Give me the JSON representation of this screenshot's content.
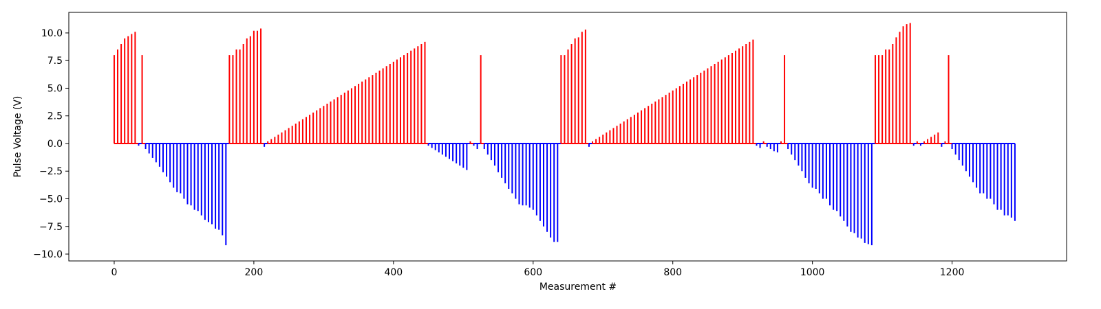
{
  "chart_data": {
    "type": "stem",
    "x_label": "Measurement #",
    "y_label": "Pulse Voltage (V)",
    "positive_color": "#ff0000",
    "negative_color": "#0000ff",
    "xlim": [
      -65,
      1364
    ],
    "ylim": [
      -10.62,
      11.86
    ],
    "xticks": [
      0,
      200,
      400,
      600,
      800,
      1000,
      1200
    ],
    "yticks": [
      {
        "value": -10,
        "label": "−10.0"
      },
      {
        "value": -7.5,
        "label": "−7.5"
      },
      {
        "value": -5,
        "label": "−5.0"
      },
      {
        "value": -2.5,
        "label": "−2.5"
      },
      {
        "value": 0,
        "label": "0.0"
      },
      {
        "value": 2.5,
        "label": "2.5"
      },
      {
        "value": 5,
        "label": "5.0"
      },
      {
        "value": 7.5,
        "label": "7.5"
      },
      {
        "value": 10,
        "label": "10.0"
      }
    ],
    "x": [
      0,
      5,
      10,
      15,
      20,
      25,
      30,
      35,
      40,
      45,
      50,
      55,
      60,
      65,
      70,
      75,
      80,
      85,
      90,
      95,
      100,
      105,
      110,
      115,
      120,
      125,
      130,
      135,
      140,
      145,
      150,
      155,
      160,
      165,
      170,
      175,
      180,
      185,
      190,
      195,
      200,
      205,
      210,
      215,
      220,
      225,
      230,
      235,
      240,
      245,
      250,
      255,
      260,
      265,
      270,
      275,
      280,
      285,
      290,
      295,
      300,
      305,
      310,
      315,
      320,
      325,
      330,
      335,
      340,
      345,
      350,
      355,
      360,
      365,
      370,
      375,
      380,
      385,
      390,
      395,
      400,
      405,
      410,
      415,
      420,
      425,
      430,
      435,
      440,
      445,
      450,
      455,
      460,
      465,
      470,
      475,
      480,
      485,
      490,
      495,
      500,
      505,
      510,
      515,
      520,
      525,
      530,
      535,
      540,
      545,
      550,
      555,
      560,
      565,
      570,
      575,
      580,
      585,
      590,
      595,
      600,
      605,
      610,
      615,
      620,
      625,
      630,
      635,
      640,
      645,
      650,
      655,
      660,
      665,
      670,
      675,
      680,
      685,
      690,
      695,
      700,
      705,
      710,
      715,
      720,
      725,
      730,
      735,
      740,
      745,
      750,
      755,
      760,
      765,
      770,
      775,
      780,
      785,
      790,
      795,
      800,
      805,
      810,
      815,
      820,
      825,
      830,
      835,
      840,
      845,
      850,
      855,
      860,
      865,
      870,
      875,
      880,
      885,
      890,
      895,
      900,
      905,
      910,
      915,
      920,
      925,
      930,
      935,
      940,
      945,
      950,
      955,
      960,
      965,
      970,
      975,
      980,
      985,
      990,
      995,
      1000,
      1005,
      1010,
      1015,
      1020,
      1025,
      1030,
      1035,
      1040,
      1045,
      1050,
      1055,
      1060,
      1065,
      1070,
      1075,
      1080,
      1085,
      1090,
      1095,
      1100,
      1105,
      1110,
      1115,
      1120,
      1125,
      1130,
      1135,
      1140,
      1145,
      1150,
      1155,
      1160,
      1165,
      1170,
      1175,
      1180,
      1185,
      1190,
      1195,
      1200,
      1205,
      1210,
      1215,
      1220,
      1225,
      1230,
      1235,
      1240,
      1245,
      1250,
      1255,
      1260,
      1265,
      1270,
      1275,
      1280,
      1285,
      1290
    ],
    "values": [
      8.0,
      8.5,
      9.0,
      9.5,
      9.7,
      9.9,
      10.1,
      -0.2,
      8.0,
      -0.5,
      -0.9,
      -1.3,
      -1.7,
      -2.1,
      -2.6,
      -3.0,
      -3.5,
      -4.0,
      -4.4,
      -4.5,
      -5.0,
      -5.5,
      -5.6,
      -6.0,
      -6.1,
      -6.5,
      -6.9,
      -7.1,
      -7.3,
      -7.7,
      -7.8,
      -8.3,
      -9.2,
      8.0,
      8.0,
      8.5,
      8.5,
      9.0,
      9.5,
      9.7,
      10.2,
      10.2,
      10.4,
      -0.3,
      0.2,
      0.4,
      0.6,
      0.8,
      1.0,
      1.2,
      1.4,
      1.6,
      1.8,
      2.0,
      2.2,
      2.4,
      2.6,
      2.8,
      3.0,
      3.2,
      3.4,
      3.6,
      3.8,
      4.0,
      4.2,
      4.4,
      4.6,
      4.8,
      5.0,
      5.2,
      5.4,
      5.6,
      5.8,
      6.0,
      6.2,
      6.4,
      6.6,
      6.8,
      7.0,
      7.2,
      7.4,
      7.6,
      7.8,
      8.0,
      8.2,
      8.4,
      8.6,
      8.8,
      9.0,
      9.2,
      -0.2,
      -0.4,
      -0.6,
      -0.8,
      -1.0,
      -1.2,
      -1.4,
      -1.6,
      -1.8,
      -2.0,
      -2.2,
      -2.4,
      0.2,
      -0.2,
      -0.5,
      8.0,
      -0.5,
      -1.0,
      -1.5,
      -2.0,
      -2.6,
      -3.1,
      -3.6,
      -4.1,
      -4.5,
      -5.0,
      -5.5,
      -5.6,
      -5.6,
      -5.8,
      -6.0,
      -6.5,
      -7.0,
      -7.5,
      -8.0,
      -8.5,
      -8.9,
      -8.9,
      8.0,
      8.0,
      8.5,
      9.0,
      9.5,
      9.6,
      10.1,
      10.3,
      -0.3,
      0.2,
      0.4,
      0.6,
      0.8,
      1.0,
      1.2,
      1.4,
      1.6,
      1.8,
      2.0,
      2.2,
      2.4,
      2.6,
      2.8,
      3.0,
      3.2,
      3.4,
      3.6,
      3.8,
      4.0,
      4.2,
      4.4,
      4.6,
      4.8,
      5.0,
      5.2,
      5.4,
      5.6,
      5.8,
      6.0,
      6.2,
      6.4,
      6.6,
      6.8,
      7.0,
      7.2,
      7.4,
      7.6,
      7.8,
      8.0,
      8.2,
      8.4,
      8.6,
      8.8,
      9.0,
      9.2,
      9.4,
      -0.2,
      -0.4,
      0.2,
      -0.3,
      -0.5,
      -0.7,
      -0.8,
      0.2,
      8.0,
      -0.5,
      -1.0,
      -1.5,
      -2.0,
      -2.5,
      -3.1,
      -3.6,
      -4.0,
      -4.1,
      -4.5,
      -5.0,
      -5.0,
      -5.6,
      -6.0,
      -6.1,
      -6.6,
      -7.0,
      -7.5,
      -8.0,
      -8.1,
      -8.5,
      -8.6,
      -9.0,
      -9.1,
      -9.2,
      8.0,
      8.0,
      8.0,
      8.5,
      8.5,
      9.0,
      9.6,
      10.1,
      10.6,
      10.8,
      10.9,
      -0.2,
      0.2,
      -0.2,
      0.2,
      0.4,
      0.6,
      0.8,
      1.0,
      -0.3,
      0.2,
      8.0,
      -0.5,
      -1.0,
      -1.5,
      -2.0,
      -2.5,
      -3.0,
      -3.5,
      -4.0,
      -4.5,
      -4.5,
      -5.0,
      -5.0,
      -5.5,
      -6.0,
      -6.0,
      -6.5,
      -6.5,
      -6.7,
      -7.0
    ]
  }
}
